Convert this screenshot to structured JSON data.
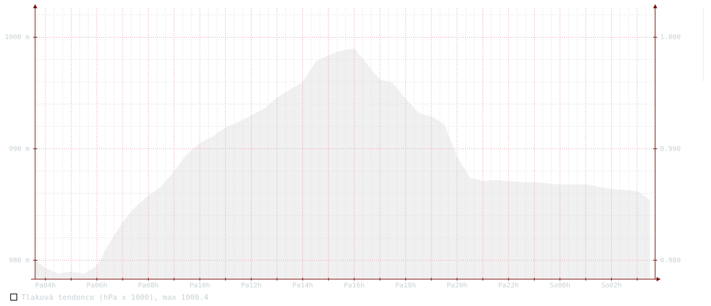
{
  "chart_data": {
    "type": "area",
    "y_left": {
      "ticks": [
        980,
        990,
        1000
      ],
      "tick_labels": [
        "980 m",
        "990 m",
        "1000 m"
      ],
      "ylim": [
        978.3,
        1002.6
      ]
    },
    "y_right": {
      "ticks": [
        0.98,
        0.99,
        1.0
      ],
      "tick_labels": [
        "0.980",
        "0.990",
        "1.000"
      ]
    },
    "x_labels": [
      "Pa04h",
      "Pa06h",
      "Pa08h",
      "Pa10h",
      "Pa12h",
      "Pa14h",
      "Pa16h",
      "Pa18h",
      "Pa20h",
      "Pa22h",
      "So00h",
      "So02h"
    ],
    "x_label_hours": [
      4,
      6,
      8,
      10,
      12,
      14,
      16,
      18,
      20,
      22,
      24,
      26
    ],
    "x_range_hours": [
      3.6,
      27.7
    ],
    "grid": true,
    "series": [
      {
        "name": "Tlaková tendence (hPa x 1000), max 1000.4",
        "x_hours": [
          3.6,
          4.0,
          4.5,
          5.0,
          5.5,
          6.0,
          6.5,
          7.0,
          7.5,
          8.0,
          8.5,
          9.0,
          9.5,
          10.0,
          10.5,
          11.0,
          11.5,
          12.0,
          12.5,
          13.0,
          13.5,
          14.0,
          14.5,
          15.0,
          15.5,
          16.0,
          16.5,
          17.0,
          17.5,
          18.0,
          18.5,
          19.0,
          19.5,
          20.0,
          20.5,
          21.0,
          21.5,
          22.0,
          22.5,
          23.0,
          23.5,
          24.0,
          24.5,
          25.0,
          25.5,
          26.0,
          26.5,
          27.0,
          27.5
        ],
        "values": [
          980.0,
          979.3,
          978.8,
          979.0,
          978.8,
          979.5,
          981.6,
          983.4,
          984.8,
          985.8,
          986.6,
          988.0,
          989.5,
          990.5,
          991.1,
          991.9,
          992.4,
          993.0,
          993.6,
          994.6,
          995.3,
          996.0,
          997.8,
          998.4,
          998.8,
          999.0,
          997.6,
          996.2,
          995.9,
          994.5,
          993.2,
          992.9,
          992.2,
          989.3,
          987.4,
          987.1,
          987.2,
          987.1,
          987.0,
          987.0,
          986.9,
          986.8,
          986.8,
          986.8,
          986.6,
          986.4,
          986.3,
          986.2,
          985.4
        ],
        "color": "#f0f0f0"
      }
    ]
  },
  "legend": {
    "label": "Tlaková tendence (hPa x 1000), max 1000.4"
  },
  "colors": {
    "axis": "#7a1010",
    "grid_major": "#e8a0a8",
    "grid_minor": "#dcdcdc",
    "area_fill": "#f0f0f0",
    "tick_text": "#c8d2d6"
  }
}
